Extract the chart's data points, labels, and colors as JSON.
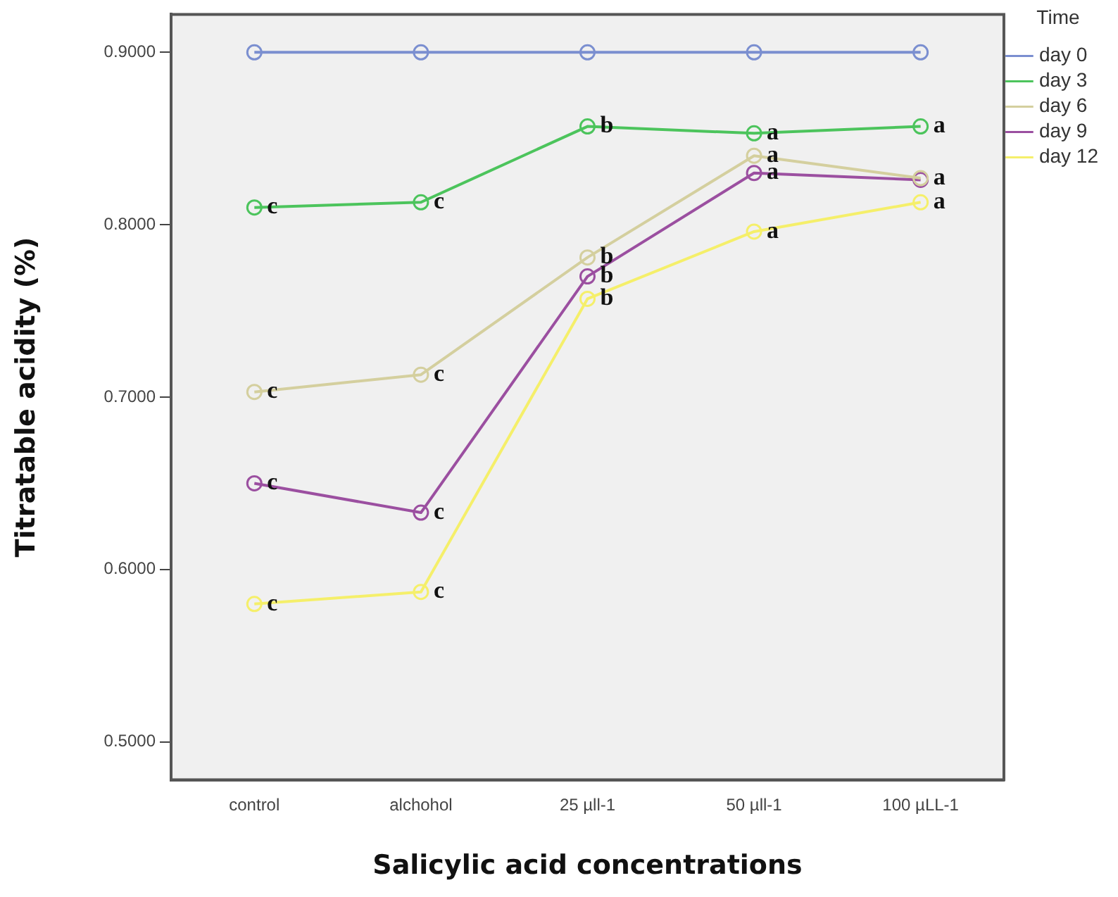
{
  "chart_data": {
    "type": "line",
    "xlabel": "Salicylic acid concentrations",
    "ylabel": "Titratable acidity (%)",
    "legend_title": "Time",
    "legend": "right",
    "marker": "circle",
    "categories": [
      "control",
      "alchohol",
      "25 µll-1",
      "50 µll-1",
      "100 µLL-1"
    ],
    "ylim": [
      0.478,
      0.922
    ],
    "yticks": [
      {
        "value": 0.5,
        "label": "0.5000"
      },
      {
        "value": 0.6,
        "label": "0.6000"
      },
      {
        "value": 0.7,
        "label": "0.7000"
      },
      {
        "value": 0.8,
        "label": "0.8000"
      },
      {
        "value": 0.9,
        "label": "0.9000"
      }
    ],
    "series": [
      {
        "name": "day 0",
        "color": "#7b8fd0",
        "values": [
          0.9,
          0.9,
          0.9,
          0.9,
          0.9
        ]
      },
      {
        "name": "day 3",
        "color": "#4cc45c",
        "values": [
          0.81,
          0.813,
          0.857,
          0.853,
          0.857
        ]
      },
      {
        "name": "day 6",
        "color": "#d4cf9e",
        "values": [
          0.703,
          0.713,
          0.781,
          0.84,
          0.827
        ]
      },
      {
        "name": "day 9",
        "color": "#9b4fa0",
        "values": [
          0.65,
          0.633,
          0.77,
          0.83,
          0.826
        ]
      },
      {
        "name": "day 12",
        "color": "#f5ef6a",
        "values": [
          0.58,
          0.587,
          0.757,
          0.796,
          0.813
        ]
      }
    ],
    "annotations": [
      {
        "text": "c",
        "x": "control",
        "y": 0.81
      },
      {
        "text": "c",
        "x": "alchohol",
        "y": 0.813
      },
      {
        "text": "b",
        "x": "25 µll-1",
        "y": 0.857
      },
      {
        "text": "a",
        "x": "50 µll-1",
        "y": 0.853
      },
      {
        "text": "a",
        "x": "100 µLL-1",
        "y": 0.857
      },
      {
        "text": "c",
        "x": "control",
        "y": 0.703
      },
      {
        "text": "c",
        "x": "alchohol",
        "y": 0.713
      },
      {
        "text": "b",
        "x": "25 µll-1",
        "y": 0.781
      },
      {
        "text": "a",
        "x": "50 µll-1",
        "y": 0.84
      },
      {
        "text": "a",
        "x": "100 µLL-1",
        "y": 0.827
      },
      {
        "text": "c",
        "x": "control",
        "y": 0.65
      },
      {
        "text": "c",
        "x": "alchohol",
        "y": 0.633
      },
      {
        "text": "b",
        "x": "25 µll-1",
        "y": 0.77
      },
      {
        "text": "a",
        "x": "50 µll-1",
        "y": 0.83
      },
      {
        "text": "c",
        "x": "control",
        "y": 0.58
      },
      {
        "text": "c",
        "x": "alchohol",
        "y": 0.587
      },
      {
        "text": "b",
        "x": "25 µll-1",
        "y": 0.757
      },
      {
        "text": "a",
        "x": "50 µll-1",
        "y": 0.796
      },
      {
        "text": "a",
        "x": "100 µLL-1",
        "y": 0.813
      }
    ]
  }
}
